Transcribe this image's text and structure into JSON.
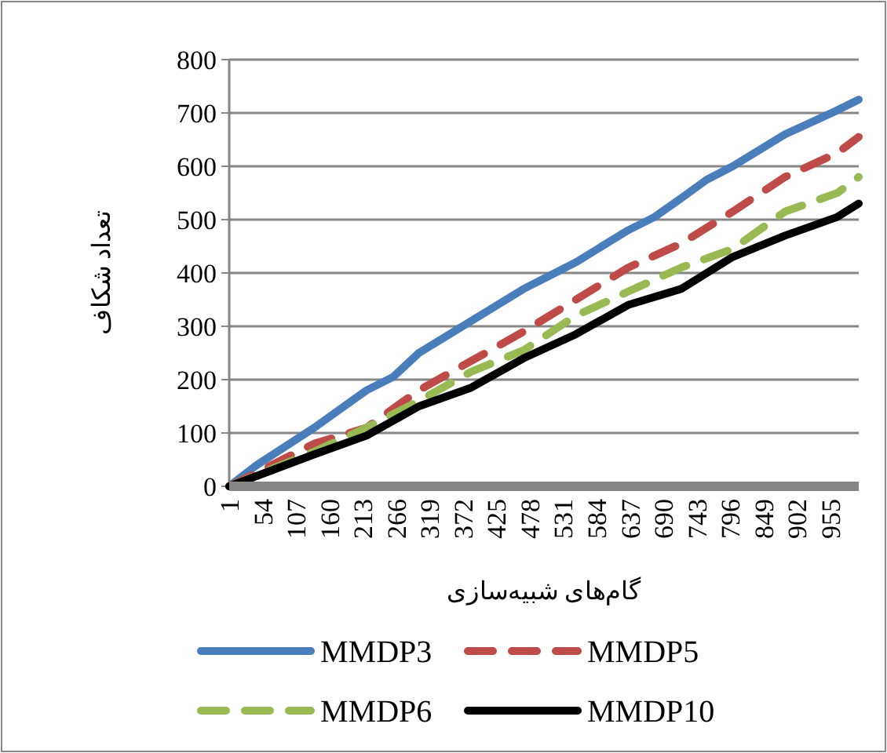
{
  "chart_data": {
    "type": "line",
    "xlabel": "گام‌های شبیه‌سازی",
    "ylabel": "تعداد شکاف",
    "xlim": [
      1,
      1000
    ],
    "xticks": [
      1,
      54,
      107,
      160,
      213,
      266,
      319,
      372,
      425,
      478,
      531,
      584,
      637,
      690,
      743,
      796,
      849,
      902,
      955
    ],
    "ylim": [
      0,
      800
    ],
    "yticks": [
      0,
      100,
      200,
      300,
      400,
      500,
      600,
      700,
      800
    ],
    "grid": "y",
    "legend": "bottom",
    "marker": "none",
    "x": [
      1,
      45,
      136,
      219,
      261,
      302,
      385,
      468,
      518,
      551,
      634,
      676,
      718,
      759,
      800,
      883,
      966,
      1000
    ],
    "series": [
      {
        "name": "MMDP3",
        "color": "#4a7ebb",
        "line_style": "solid",
        "values": [
          0,
          40,
          110,
          180,
          205,
          250,
          310,
          370,
          400,
          420,
          480,
          505,
          540,
          575,
          600,
          660,
          705,
          725
        ]
      },
      {
        "name": "MMDP5",
        "color": "#be4b48",
        "line_style": "dashed",
        "x": [
          1,
          136,
          219,
          302,
          385,
          468,
          551,
          634,
          718,
          800,
          883,
          966,
          1000
        ],
        "values": [
          0,
          80,
          110,
          180,
          235,
          290,
          350,
          410,
          455,
          515,
          580,
          625,
          655
        ]
      },
      {
        "name": "MMDP6",
        "color": "#98b954",
        "line_style": "dashed",
        "x": [
          1,
          136,
          219,
          302,
          385,
          468,
          551,
          634,
          718,
          800,
          883,
          966,
          1000
        ],
        "values": [
          0,
          65,
          110,
          160,
          215,
          255,
          320,
          365,
          410,
          445,
          515,
          550,
          580
        ]
      },
      {
        "name": "MMDP10",
        "color": "#000000",
        "line_style": "solid",
        "x": [
          1,
          136,
          219,
          302,
          385,
          468,
          551,
          634,
          718,
          800,
          883,
          966,
          1000
        ],
        "values": [
          0,
          60,
          95,
          150,
          185,
          240,
          285,
          340,
          370,
          430,
          470,
          505,
          530
        ]
      }
    ]
  }
}
